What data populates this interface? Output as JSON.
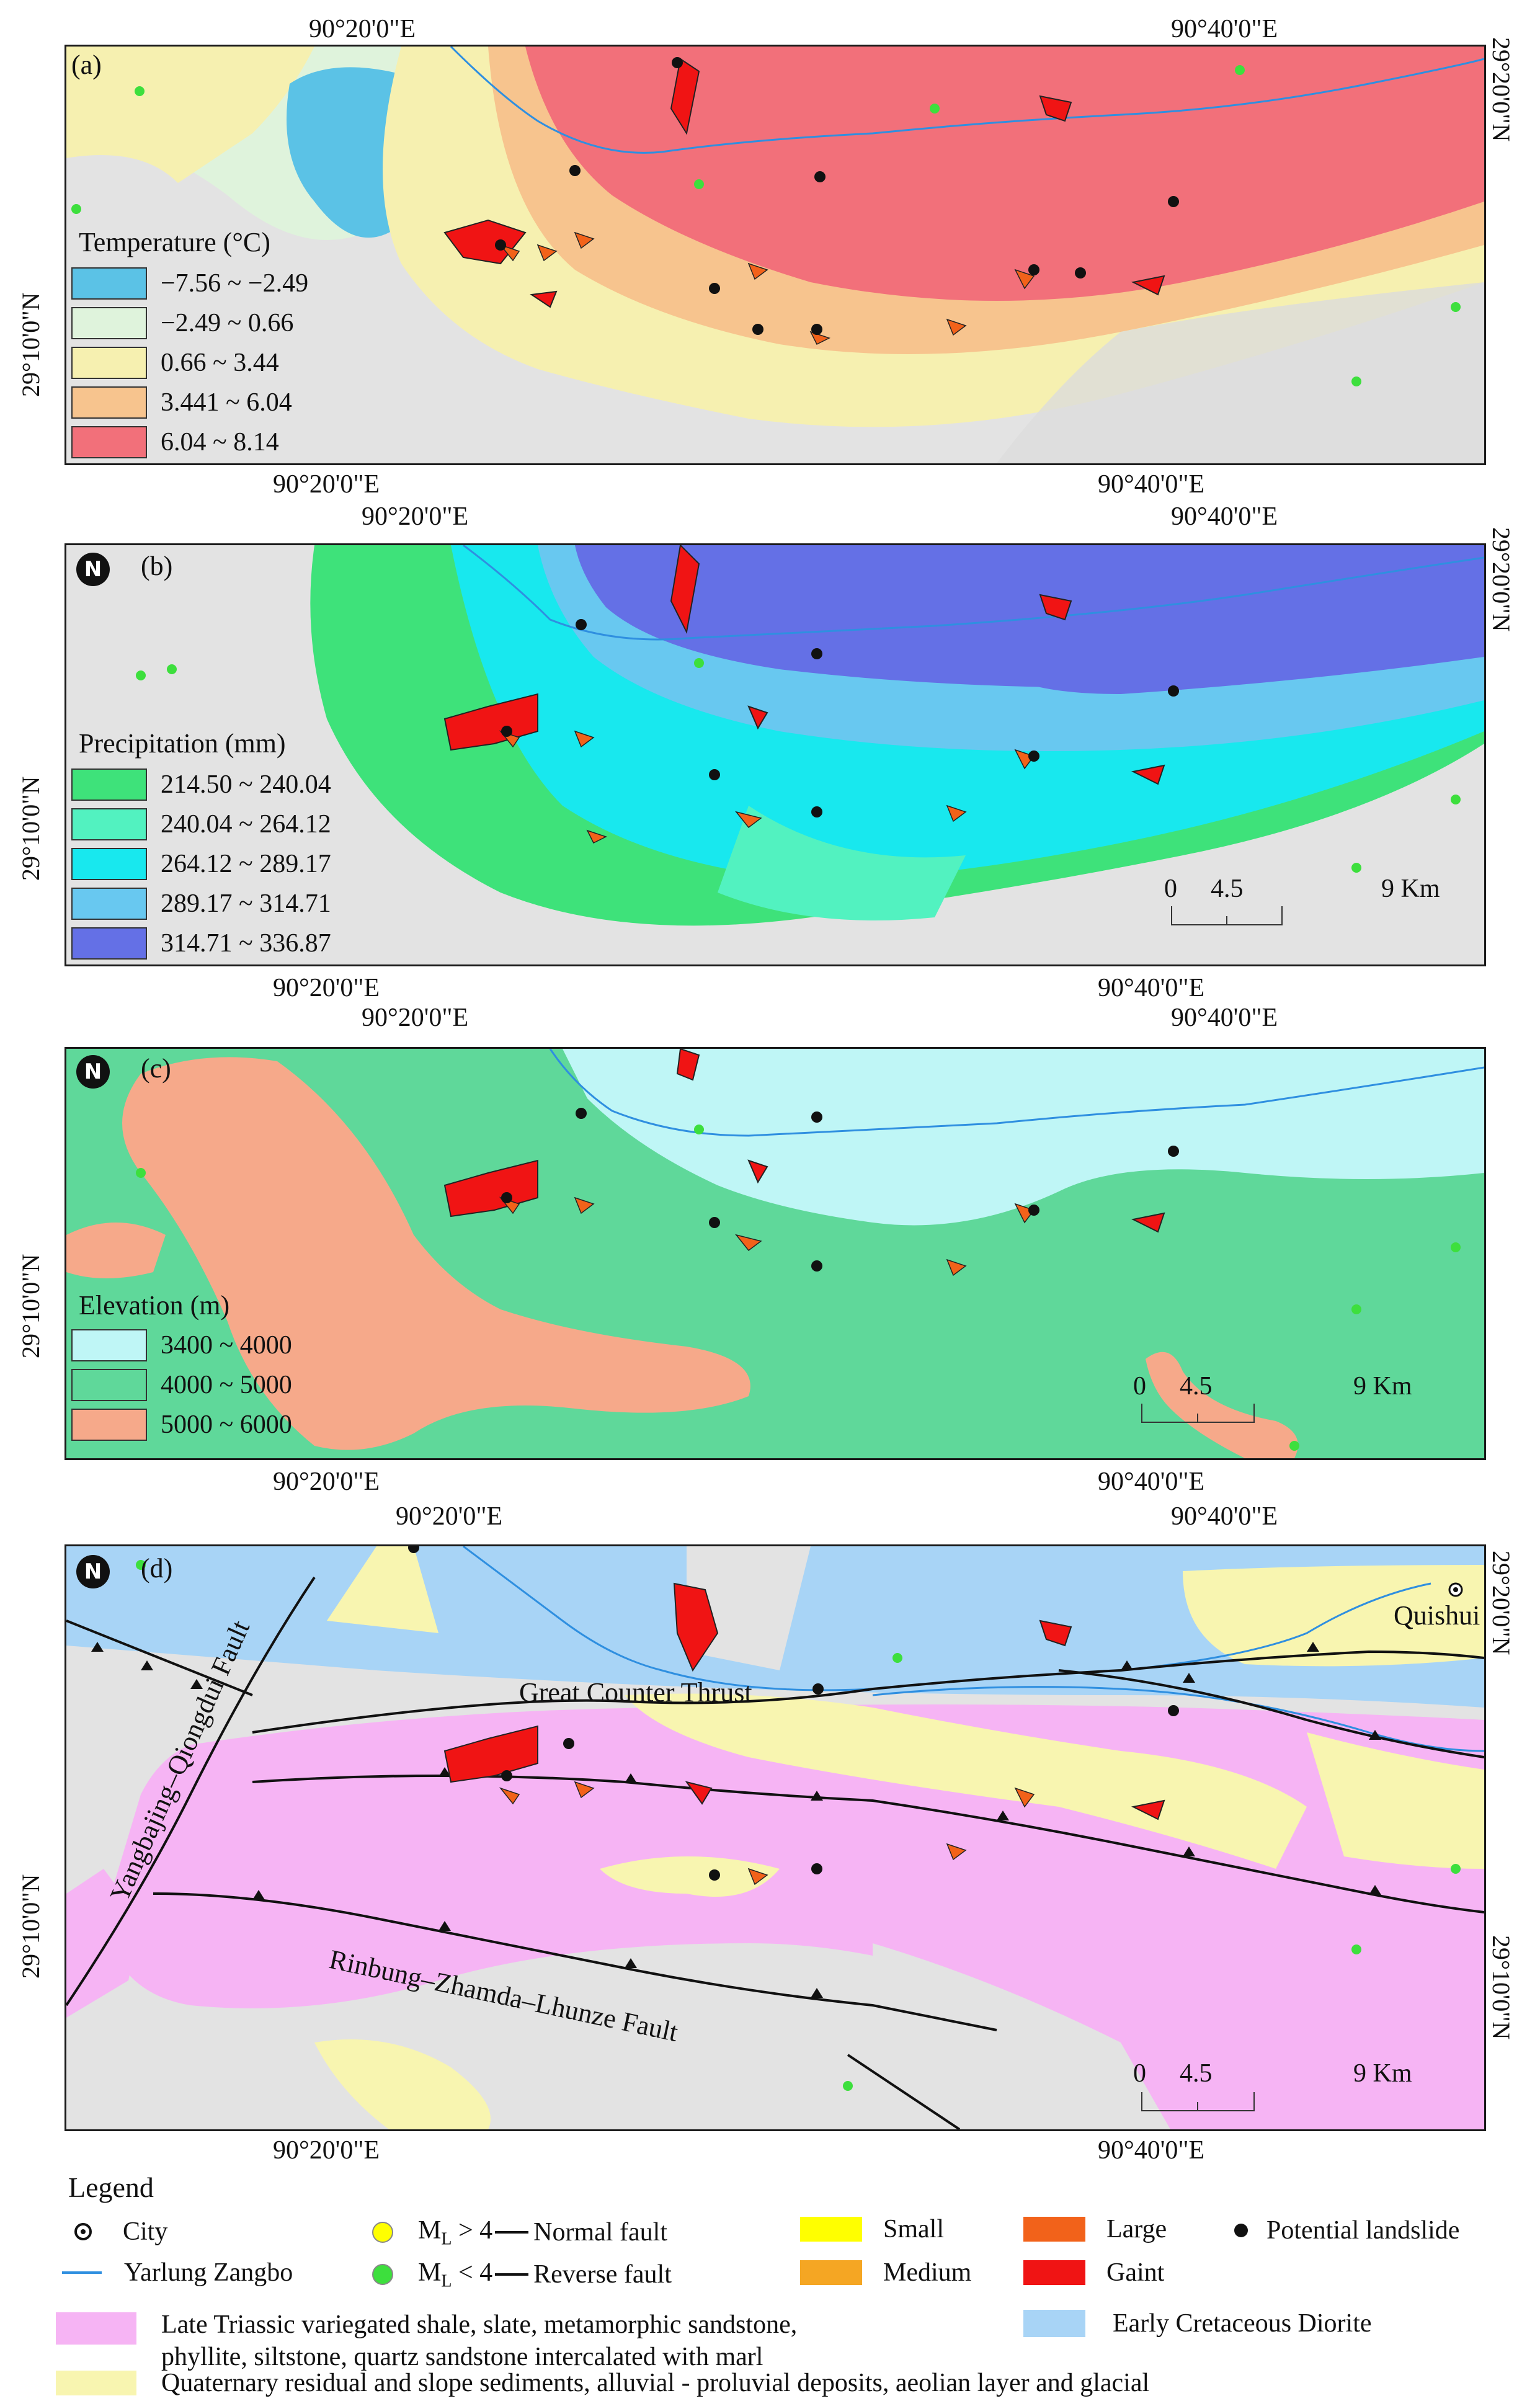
{
  "coords": {
    "lon_20": "90°20'0\"E",
    "lon_40": "90°40'0\"E",
    "lat_10": "29°10'0\"N",
    "lat_20": "29°20'0\"N"
  },
  "panels": {
    "a": {
      "label": "(a)",
      "legend_title": "Temperature (°C)",
      "classes": [
        {
          "label": "−7.56 ~ −2.49",
          "color": "#5bc2e6"
        },
        {
          "label": "−2.49 ~ 0.66",
          "color": "#dff3dc"
        },
        {
          "label": "0.66 ~ 3.44",
          "color": "#f6f0b0"
        },
        {
          "label": "3.441 ~ 6.04",
          "color": "#f7c48e"
        },
        {
          "label": "6.04 ~ 8.14",
          "color": "#f2707a"
        }
      ]
    },
    "b": {
      "label": "(b)",
      "legend_title": "Precipitation (mm)",
      "classes": [
        {
          "label": "214.50 ~ 240.04",
          "color": "#3ee27a"
        },
        {
          "label": "240.04 ~ 264.12",
          "color": "#52f2c0"
        },
        {
          "label": "264.12 ~ 289.17",
          "color": "#18e8ee"
        },
        {
          "label": "289.17 ~ 314.71",
          "color": "#68c8f0"
        },
        {
          "label": "314.71 ~ 336.87",
          "color": "#6470e6"
        }
      ],
      "scale": {
        "s0": "0",
        "s1": "4.5",
        "s2": "9 Km"
      }
    },
    "c": {
      "label": "(c)",
      "legend_title": "Elevation (m)",
      "classes": [
        {
          "label": "3400 ~ 4000",
          "color": "#bff6f6"
        },
        {
          "label": "4000 ~ 5000",
          "color": "#5fd89a"
        },
        {
          "label": "5000 ~ 6000",
          "color": "#f6a98a"
        }
      ],
      "scale": {
        "s0": "0",
        "s1": "4.5",
        "s2": "9 Km"
      }
    },
    "d": {
      "label": "(d)",
      "fault_yangbajing": "Yangbajing–Qiongdui Fault",
      "fault_counter": "Great Counter Thrust",
      "fault_rinbung": "Rinbung–Zhamda–Lhunze Fault",
      "city": "Quishui",
      "scale": {
        "s0": "0",
        "s1": "4.5",
        "s2": "9 Km"
      }
    }
  },
  "legend": {
    "title": "Legend",
    "city": "City",
    "river": "Yarlung Zangbo",
    "ml_gt": "M",
    "ml_gt_sub": "L",
    "ml_gt_rest": " > 4",
    "ml_lt": "M",
    "ml_lt_sub": "L",
    "ml_lt_rest": " < 4",
    "normal_fault": "Normal fault",
    "reverse_fault": "Reverse fault",
    "small": "Small",
    "medium": "Medium",
    "large": "Large",
    "giant": "Gaint",
    "potential": "Potential landslide",
    "triassic": "Late Triassic variegated shale, slate, metamorphic sandstone,",
    "triassic_2": "phyllite, siltstone, quartz sandstone intercalated with marl",
    "quaternary": "Quaternary residual and slope sediments, alluvial - proluvial deposits, aeolian layer and glacial",
    "cretaceous": "Early Cretaceous Diorite",
    "colors": {
      "small": "#ffff00",
      "medium": "#f5a623",
      "large": "#f2621a",
      "giant": "#f01414",
      "river": "#2f8fe0",
      "triassic": "#f6b4f4",
      "quaternary": "#f8f5b0",
      "cretaceous": "#a8d4f6"
    }
  }
}
